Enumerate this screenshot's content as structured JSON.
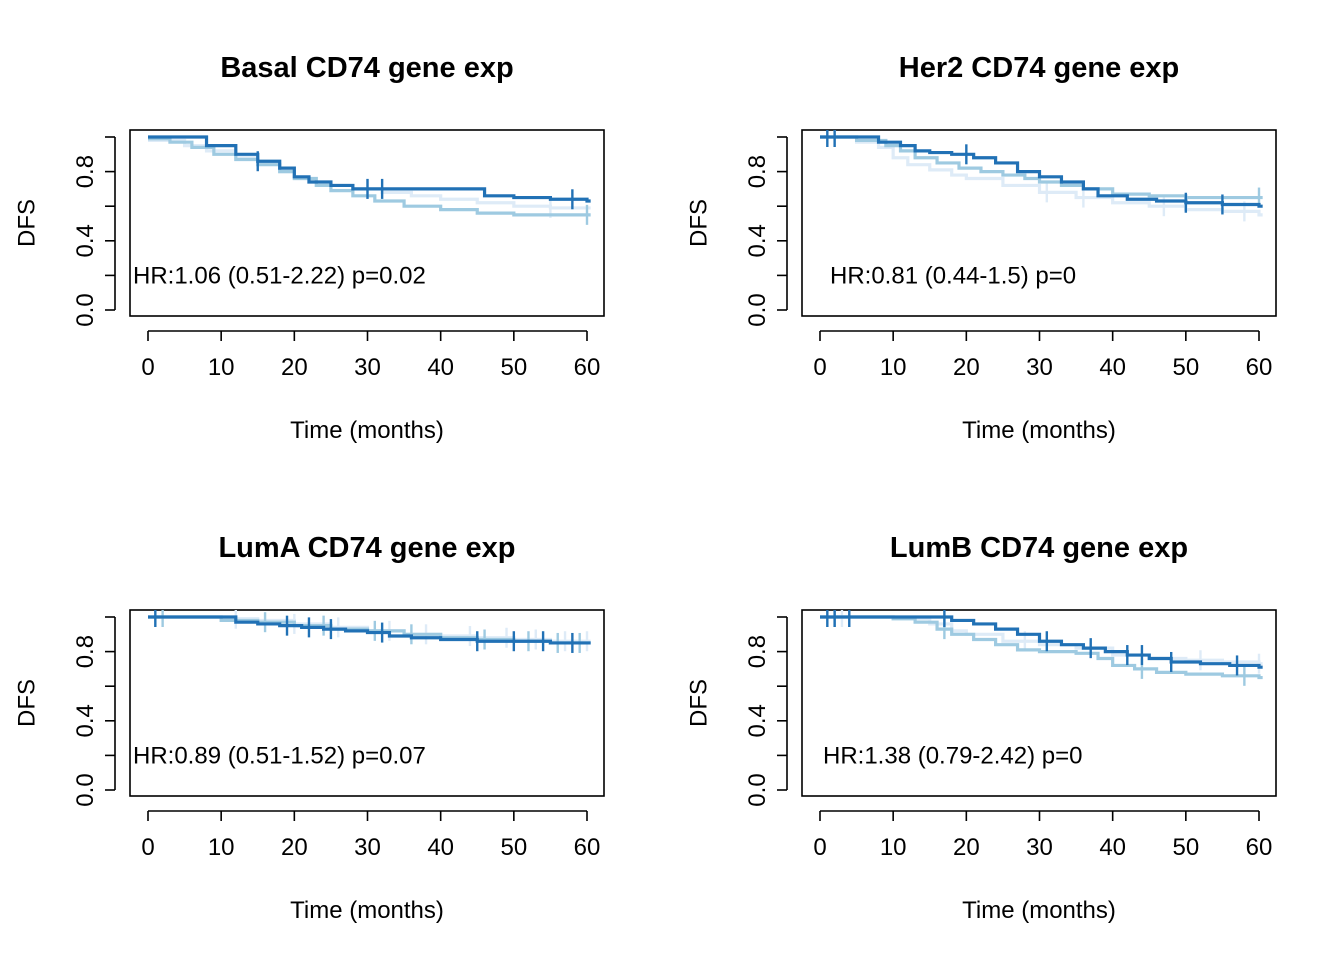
{
  "chart_data": [
    {
      "type": "line",
      "title": "Basal CD74 gene exp",
      "xlabel": "Time (months)",
      "ylabel": "DFS",
      "annotation": "HR:1.06 (0.51-2.22) p=0.02",
      "xlim": [
        0,
        60
      ],
      "ylim": [
        0,
        1
      ],
      "xticks": [
        0,
        10,
        20,
        30,
        40,
        50,
        60
      ],
      "yticks": [
        0.0,
        0.4,
        0.8
      ],
      "ytick_labels": [
        "0.0",
        "0.4",
        "0.8"
      ],
      "grid": false,
      "series": [
        {
          "color": "#deebf7",
          "x": [
            0,
            2,
            5,
            8,
            12,
            15,
            18,
            20,
            22,
            25,
            28,
            32,
            36,
            40,
            45,
            50,
            55,
            60
          ],
          "y": [
            0.98,
            0.98,
            0.95,
            0.92,
            0.88,
            0.85,
            0.8,
            0.76,
            0.74,
            0.72,
            0.7,
            0.68,
            0.66,
            0.64,
            0.62,
            0.6,
            0.59,
            0.59
          ],
          "censor_x": [
            30,
            55
          ]
        },
        {
          "color": "#9ecae1",
          "x": [
            0,
            3,
            6,
            9,
            12,
            15,
            18,
            20,
            23,
            25,
            28,
            31,
            35,
            40,
            45,
            50,
            55,
            60
          ],
          "y": [
            0.99,
            0.97,
            0.94,
            0.9,
            0.87,
            0.84,
            0.8,
            0.76,
            0.72,
            0.69,
            0.66,
            0.63,
            0.6,
            0.58,
            0.56,
            0.55,
            0.55,
            0.55
          ],
          "censor_x": [
            60
          ]
        },
        {
          "color": "#2171b5",
          "x": [
            0,
            6,
            8,
            12,
            15,
            18,
            20,
            22,
            25,
            28,
            32,
            38,
            42,
            46,
            50,
            55,
            60
          ],
          "y": [
            1.0,
            1.0,
            0.95,
            0.9,
            0.86,
            0.82,
            0.77,
            0.74,
            0.72,
            0.7,
            0.7,
            0.7,
            0.7,
            0.66,
            0.65,
            0.64,
            0.63
          ],
          "censor_x": [
            15,
            30,
            32,
            58
          ]
        }
      ]
    },
    {
      "type": "line",
      "title": "Her2 CD74 gene exp",
      "xlabel": "Time (months)",
      "ylabel": "DFS",
      "annotation": "HR:0.81 (0.44-1.5) p=0",
      "xlim": [
        0,
        60
      ],
      "ylim": [
        0,
        1
      ],
      "xticks": [
        0,
        10,
        20,
        30,
        40,
        50,
        60
      ],
      "yticks": [
        0.0,
        0.4,
        0.8
      ],
      "ytick_labels": [
        "0.0",
        "0.4",
        "0.8"
      ],
      "grid": false,
      "series": [
        {
          "color": "#deebf7",
          "x": [
            0,
            5,
            8,
            10,
            12,
            15,
            18,
            20,
            25,
            30,
            35,
            40,
            45,
            50,
            55,
            60
          ],
          "y": [
            1.0,
            0.97,
            0.94,
            0.88,
            0.84,
            0.81,
            0.78,
            0.76,
            0.72,
            0.68,
            0.65,
            0.62,
            0.6,
            0.58,
            0.57,
            0.55
          ],
          "censor_x": [
            2,
            31,
            36,
            47,
            58
          ]
        },
        {
          "color": "#9ecae1",
          "x": [
            0,
            5,
            9,
            11,
            13,
            16,
            19,
            22,
            25,
            28,
            30,
            33,
            36,
            40,
            45,
            50,
            55,
            60
          ],
          "y": [
            1.0,
            0.98,
            0.95,
            0.92,
            0.88,
            0.85,
            0.82,
            0.8,
            0.78,
            0.76,
            0.74,
            0.72,
            0.7,
            0.67,
            0.66,
            0.65,
            0.65,
            0.65
          ],
          "censor_x": [
            60
          ]
        },
        {
          "color": "#2171b5",
          "x": [
            0,
            4,
            8,
            11,
            13,
            15,
            18,
            21,
            24,
            27,
            30,
            33,
            36,
            38,
            42,
            46,
            50,
            55,
            60
          ],
          "y": [
            1.0,
            1.0,
            0.97,
            0.95,
            0.92,
            0.91,
            0.9,
            0.88,
            0.85,
            0.8,
            0.77,
            0.74,
            0.7,
            0.66,
            0.64,
            0.63,
            0.62,
            0.61,
            0.6
          ],
          "censor_x": [
            1,
            2,
            20,
            50,
            55
          ]
        }
      ]
    },
    {
      "type": "line",
      "title": "LumA CD74 gene exp",
      "xlabel": "Time (months)",
      "ylabel": "DFS",
      "annotation": "HR:0.89 (0.51-1.52) p=0.07",
      "xlim": [
        0,
        60
      ],
      "ylim": [
        0,
        1
      ],
      "xticks": [
        0,
        10,
        20,
        30,
        40,
        50,
        60
      ],
      "yticks": [
        0.0,
        0.4,
        0.8
      ],
      "ytick_labels": [
        "0.0",
        "0.4",
        "0.8"
      ],
      "grid": false,
      "series": [
        {
          "color": "#deebf7",
          "x": [
            0,
            5,
            10,
            15,
            20,
            25,
            30,
            35,
            40,
            45,
            50,
            55,
            60
          ],
          "y": [
            1.0,
            1.0,
            0.99,
            0.98,
            0.96,
            0.94,
            0.92,
            0.9,
            0.89,
            0.88,
            0.87,
            0.86,
            0.86
          ],
          "censor_x": [
            12,
            20,
            26,
            33,
            38,
            44,
            49,
            53,
            57,
            60
          ]
        },
        {
          "color": "#9ecae1",
          "x": [
            0,
            5,
            10,
            15,
            20,
            25,
            30,
            35,
            40,
            45,
            50,
            55,
            60
          ],
          "y": [
            1.0,
            1.0,
            0.98,
            0.97,
            0.95,
            0.93,
            0.92,
            0.9,
            0.88,
            0.87,
            0.86,
            0.85,
            0.85
          ],
          "censor_x": [
            2,
            16,
            24,
            31,
            36,
            46,
            52,
            56,
            59
          ]
        },
        {
          "color": "#2171b5",
          "x": [
            0,
            5,
            9,
            12,
            15,
            18,
            21,
            24,
            27,
            30,
            33,
            36,
            40,
            45,
            50,
            55,
            60
          ],
          "y": [
            1.0,
            1.0,
            1.0,
            0.97,
            0.96,
            0.95,
            0.94,
            0.93,
            0.92,
            0.91,
            0.89,
            0.88,
            0.87,
            0.86,
            0.86,
            0.85,
            0.85
          ],
          "censor_x": [
            1,
            19,
            22,
            25,
            32,
            45,
            50,
            54,
            58
          ]
        }
      ]
    },
    {
      "type": "line",
      "title": "LumB CD74 gene exp",
      "xlabel": "Time (months)",
      "ylabel": "DFS",
      "annotation": "HR:1.38 (0.79-2.42) p=0",
      "xlim": [
        0,
        60
      ],
      "ylim": [
        0,
        1
      ],
      "xticks": [
        0,
        10,
        20,
        30,
        40,
        50,
        60
      ],
      "yticks": [
        0.0,
        0.4,
        0.8
      ],
      "ytick_labels": [
        "0.0",
        "0.4",
        "0.8"
      ],
      "grid": false,
      "series": [
        {
          "color": "#deebf7",
          "x": [
            0,
            5,
            10,
            15,
            18,
            20,
            25,
            30,
            35,
            40,
            45,
            50,
            55,
            60
          ],
          "y": [
            1.0,
            1.0,
            0.99,
            0.96,
            0.92,
            0.9,
            0.86,
            0.84,
            0.82,
            0.78,
            0.76,
            0.75,
            0.74,
            0.73
          ],
          "censor_x": [
            3,
            28,
            42,
            52,
            60
          ]
        },
        {
          "color": "#9ecae1",
          "x": [
            0,
            5,
            10,
            13,
            16,
            18,
            21,
            24,
            27,
            30,
            35,
            38,
            40,
            43,
            46,
            50,
            55,
            60
          ],
          "y": [
            1.0,
            1.0,
            0.99,
            0.97,
            0.93,
            0.9,
            0.87,
            0.84,
            0.81,
            0.8,
            0.79,
            0.76,
            0.72,
            0.7,
            0.68,
            0.67,
            0.66,
            0.65
          ],
          "censor_x": [
            2,
            17,
            44,
            58
          ]
        },
        {
          "color": "#2171b5",
          "x": [
            0,
            10,
            14,
            18,
            21,
            24,
            27,
            30,
            33,
            36,
            39,
            42,
            45,
            48,
            52,
            56,
            60
          ],
          "y": [
            1.0,
            1.0,
            1.0,
            0.98,
            0.96,
            0.93,
            0.9,
            0.86,
            0.84,
            0.82,
            0.8,
            0.78,
            0.76,
            0.74,
            0.73,
            0.72,
            0.71
          ],
          "censor_x": [
            1,
            2,
            4,
            17,
            31,
            37,
            42,
            44,
            48,
            57
          ]
        }
      ]
    }
  ]
}
